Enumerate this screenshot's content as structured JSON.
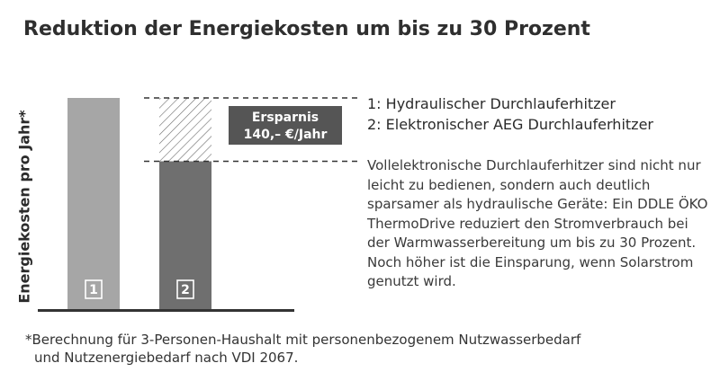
{
  "title": "Reduktion der Energiekosten um bis zu 30 Prozent",
  "colors": {
    "bar1": "#a6a6a6",
    "bar2": "#6f6f6f",
    "savings_box": "#555555",
    "axis": "#333333"
  },
  "chart_data": {
    "type": "bar",
    "ylabel": "Energiekosten pro Jahr*",
    "categories": [
      "1",
      "2"
    ],
    "values": [
      100,
      70
    ],
    "ylim": [
      0,
      100
    ],
    "annotation": {
      "line1": "Ersparnis",
      "line2": "140,– €/Jahr"
    }
  },
  "legend": [
    "1: Hydraulischer Durchlauferhitzer",
    "2: Elektronischer AEG Durchlauferhitzer"
  ],
  "description": "Vollelektronische Durchlauferhitzer sind nicht nur leicht zu bedienen, sondern auch deutlich sparsamer als hydraulische Geräte: Ein DDLE ÖKO ThermoDrive reduziert den Stromverbrauch bei der Warmwasserbereitung um bis zu 30 Prozent. Noch höher ist die Einsparung, wenn Solarstrom genutzt wird.",
  "footnote": {
    "marker": "*",
    "line1": "Berechnung für 3-Personen-Haushalt mit personenbezogenem Nutzwasserbedarf",
    "line2": "und Nutzenergiebedarf nach VDI 2067."
  }
}
